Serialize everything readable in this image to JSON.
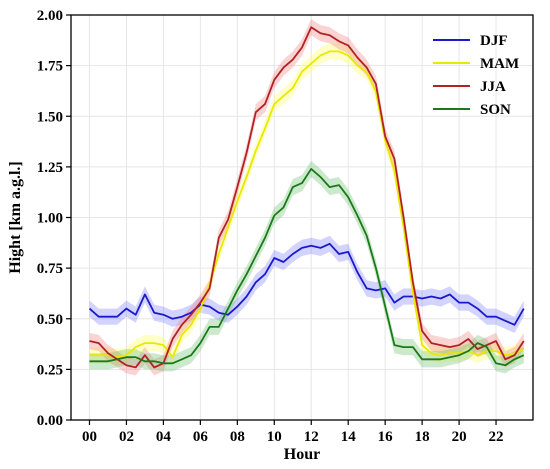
{
  "chart_data": {
    "type": "line",
    "xlabel": "Hour",
    "ylabel": "Hight [km a.g.l.]",
    "xlim": [
      -1,
      24
    ],
    "ylim": [
      0,
      2.0
    ],
    "xticks": [
      0,
      2,
      4,
      6,
      8,
      10,
      12,
      14,
      16,
      18,
      20,
      22
    ],
    "xtick_labels": [
      "00",
      "02",
      "04",
      "06",
      "08",
      "10",
      "12",
      "14",
      "16",
      "18",
      "20",
      "22"
    ],
    "yticks": [
      0,
      0.25,
      0.5,
      0.75,
      1.0,
      1.25,
      1.5,
      1.75,
      2.0
    ],
    "ytick_labels": [
      "0.00",
      "0.25",
      "0.50",
      "0.75",
      "1.00",
      "1.25",
      "1.50",
      "1.75",
      "2.00"
    ],
    "grid": true,
    "legend_position": "top-right",
    "x": [
      0,
      0.5,
      1,
      1.5,
      2,
      2.5,
      3,
      3.5,
      4,
      4.5,
      5,
      5.5,
      6,
      6.5,
      7,
      7.5,
      8,
      8.5,
      9,
      9.5,
      10,
      10.5,
      11,
      11.5,
      12,
      12.5,
      13,
      13.5,
      14,
      14.5,
      15,
      15.5,
      16,
      16.5,
      17,
      17.5,
      18,
      18.5,
      19,
      19.5,
      20,
      20.5,
      21,
      21.5,
      22,
      22.5,
      23,
      23.5
    ],
    "series": [
      {
        "name": "DJF",
        "color": "#1a1acc",
        "band_color": "#8080ff",
        "band": 0.04,
        "values": [
          0.55,
          0.51,
          0.51,
          0.51,
          0.55,
          0.52,
          0.62,
          0.53,
          0.52,
          0.5,
          0.51,
          0.53,
          0.57,
          0.56,
          0.53,
          0.52,
          0.56,
          0.61,
          0.68,
          0.72,
          0.8,
          0.78,
          0.82,
          0.85,
          0.86,
          0.85,
          0.87,
          0.82,
          0.83,
          0.73,
          0.65,
          0.64,
          0.65,
          0.58,
          0.61,
          0.61,
          0.6,
          0.61,
          0.6,
          0.62,
          0.58,
          0.58,
          0.55,
          0.51,
          0.51,
          0.49,
          0.47,
          0.55
        ]
      },
      {
        "name": "MAM",
        "color": "#e8e800",
        "band_color": "#ffff60",
        "band": 0.04,
        "values": [
          0.32,
          0.32,
          0.32,
          0.31,
          0.32,
          0.36,
          0.38,
          0.38,
          0.37,
          0.31,
          0.42,
          0.47,
          0.55,
          0.67,
          0.82,
          0.95,
          1.08,
          1.2,
          1.33,
          1.44,
          1.56,
          1.6,
          1.64,
          1.72,
          1.76,
          1.8,
          1.82,
          1.82,
          1.8,
          1.75,
          1.72,
          1.62,
          1.38,
          1.23,
          0.95,
          0.63,
          0.37,
          0.33,
          0.32,
          0.33,
          0.33,
          0.34,
          0.32,
          0.34,
          0.34,
          0.32,
          0.33,
          0.35
        ]
      },
      {
        "name": "JJA",
        "color": "#b22222",
        "band_color": "#f08080",
        "band": 0.04,
        "values": [
          0.39,
          0.38,
          0.33,
          0.3,
          0.27,
          0.26,
          0.32,
          0.26,
          0.28,
          0.4,
          0.47,
          0.52,
          0.58,
          0.65,
          0.9,
          0.99,
          1.15,
          1.32,
          1.52,
          1.56,
          1.68,
          1.74,
          1.78,
          1.84,
          1.94,
          1.91,
          1.9,
          1.87,
          1.85,
          1.79,
          1.74,
          1.66,
          1.4,
          1.29,
          1.0,
          0.68,
          0.44,
          0.38,
          0.37,
          0.36,
          0.37,
          0.4,
          0.35,
          0.37,
          0.39,
          0.3,
          0.32,
          0.39
        ]
      },
      {
        "name": "SON",
        "color": "#1a7a1a",
        "band_color": "#70c070",
        "band": 0.04,
        "values": [
          0.29,
          0.29,
          0.29,
          0.3,
          0.31,
          0.31,
          0.29,
          0.29,
          0.28,
          0.28,
          0.3,
          0.32,
          0.38,
          0.46,
          0.46,
          0.55,
          0.64,
          0.72,
          0.81,
          0.9,
          1.01,
          1.05,
          1.15,
          1.17,
          1.24,
          1.2,
          1.15,
          1.16,
          1.1,
          1.01,
          0.91,
          0.75,
          0.56,
          0.37,
          0.36,
          0.36,
          0.3,
          0.3,
          0.3,
          0.31,
          0.32,
          0.34,
          0.38,
          0.36,
          0.28,
          0.27,
          0.3,
          0.32
        ]
      }
    ]
  }
}
